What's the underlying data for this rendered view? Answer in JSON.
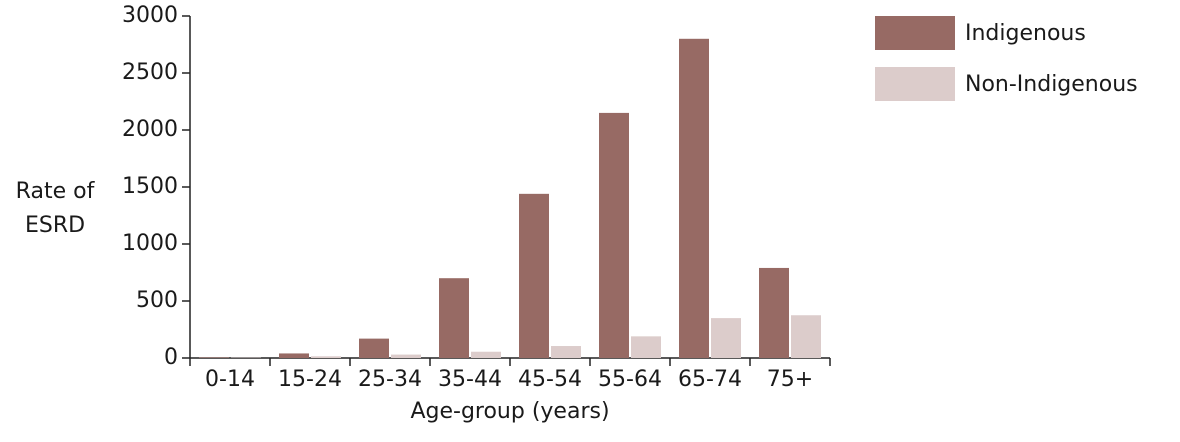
{
  "chart_data": {
    "type": "bar",
    "ylabel_lines": [
      "Rate of",
      "ESRD"
    ],
    "xlabel": "Age-group (years)",
    "categories": [
      "0-14",
      "15-24",
      "25-34",
      "35-44",
      "45-54",
      "55-64",
      "65-74",
      "75+"
    ],
    "series": [
      {
        "name": "Indigenous",
        "color": "#976a64",
        "values": [
          5,
          40,
          170,
          700,
          1440,
          2150,
          2800,
          790
        ]
      },
      {
        "name": "Non-Indigenous",
        "color": "#dccccb",
        "values": [
          3,
          15,
          30,
          55,
          105,
          190,
          350,
          375
        ]
      }
    ],
    "ylim": [
      0,
      3000
    ],
    "yticks": [
      0,
      500,
      1000,
      1500,
      2000,
      2500,
      3000
    ],
    "legend": "top-right",
    "grid": false
  }
}
